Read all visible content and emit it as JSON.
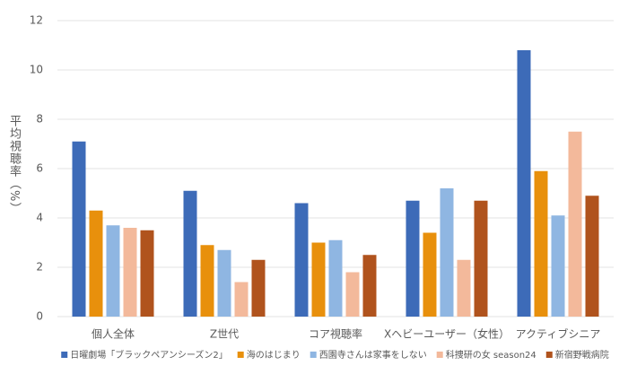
{
  "chart_data": {
    "type": "bar",
    "ylabel": "平均視聴率（%）",
    "categories": [
      "個人全体",
      "Z世代",
      "コア視聴率",
      "Xヘビーユーザー（女性）",
      "アクティブシニア"
    ],
    "series": [
      {
        "name": "日曜劇場「ブラックペアンシーズン2」",
        "color": "#3d6bb8",
        "values": [
          7.1,
          5.1,
          4.6,
          4.7,
          10.8
        ]
      },
      {
        "name": "海のはじまり",
        "color": "#e8900c",
        "values": [
          4.3,
          2.9,
          3.0,
          3.4,
          5.9
        ]
      },
      {
        "name": "西園寺さんは家事をしない",
        "color": "#8fb6e2",
        "values": [
          3.7,
          2.7,
          3.1,
          5.2,
          4.1
        ]
      },
      {
        "name": "科捜研の女 season24",
        "color": "#f3b99b",
        "values": [
          3.6,
          1.4,
          1.8,
          2.3,
          7.5
        ]
      },
      {
        "name": "新宿野戦病院",
        "color": "#b0531d",
        "values": [
          3.5,
          2.3,
          2.5,
          4.7,
          4.9
        ]
      }
    ],
    "ylim": [
      0,
      12
    ],
    "yticks": [
      0,
      2,
      4,
      6,
      8,
      10,
      12
    ],
    "grid": true
  }
}
